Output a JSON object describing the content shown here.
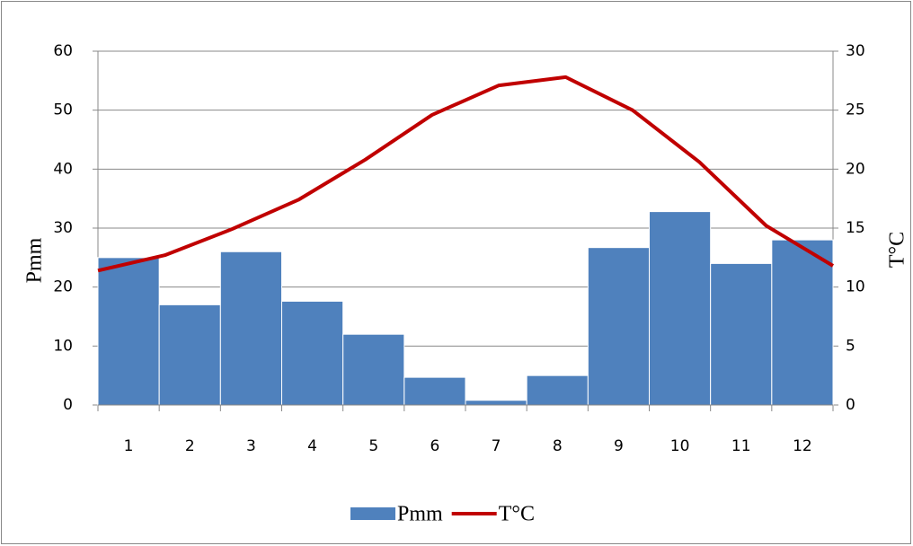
{
  "chart_data": {
    "type": "combo",
    "categories": [
      "1",
      "2",
      "3",
      "4",
      "5",
      "6",
      "7",
      "8",
      "9",
      "10",
      "11",
      "12"
    ],
    "series": [
      {
        "name": "Pmm",
        "type": "bar",
        "color": "#4f81bd",
        "values": [
          25,
          17,
          26,
          17.6,
          12,
          4.7,
          0.8,
          5,
          26.7,
          32.8,
          24,
          28
        ]
      },
      {
        "name": "T°C",
        "type": "line",
        "axis": "y2",
        "color": "#c00000",
        "values": [
          11.4,
          12.7,
          14.9,
          17.4,
          20.8,
          24.6,
          27.1,
          27.8,
          25.0,
          20.6,
          15.2,
          11.8
        ]
      }
    ],
    "ylabel": "Pmm",
    "y2label": "T°C",
    "ylim": [
      0,
      60
    ],
    "yticks": [
      0,
      10,
      20,
      30,
      40,
      50,
      60
    ],
    "y2lim": [
      0,
      30
    ],
    "y2ticks": [
      0,
      5,
      10,
      15,
      20,
      25,
      30
    ],
    "grid": true,
    "legend": "bottom"
  }
}
